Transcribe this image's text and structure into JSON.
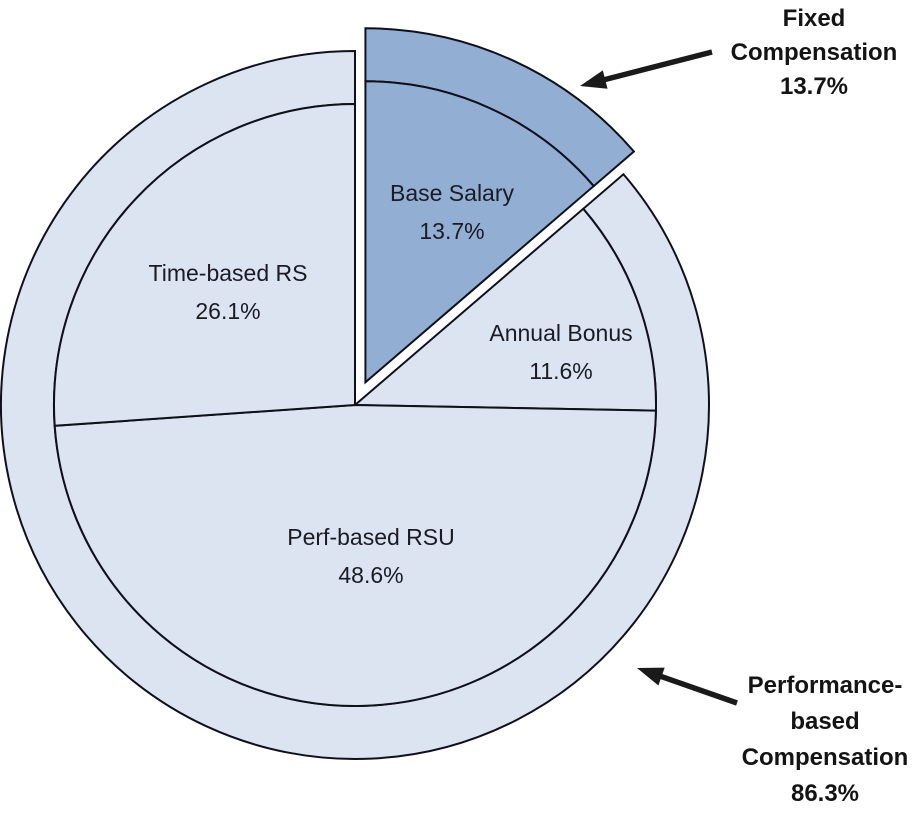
{
  "chart_data": {
    "type": "pie",
    "title": "",
    "legend_position": "none",
    "start_angle_deg": 0,
    "direction": "clockwise",
    "unit": "%",
    "slices": [
      {
        "label": "Base Salary",
        "value": 13.7,
        "value_text": "13.7%",
        "group": "fixed",
        "exploded": true
      },
      {
        "label": "Annual Bonus",
        "value": 11.6,
        "value_text": "11.6%",
        "group": "performance",
        "exploded": false
      },
      {
        "label": "Perf-based RSU",
        "value": 48.6,
        "value_text": "48.6%",
        "group": "performance",
        "exploded": false
      },
      {
        "label": "Time-based RS",
        "value": 26.1,
        "value_text": "26.1%",
        "group": "performance",
        "exploded": false
      }
    ],
    "groups": [
      {
        "name": "fixed",
        "label": "Fixed Compensation",
        "pct": 13.7,
        "color": "#92AFD3"
      },
      {
        "name": "performance",
        "label": "Performance-based Compensation",
        "pct": 86.3,
        "color": "#DCE4F1"
      }
    ],
    "annotations": [
      {
        "id": "fixed",
        "lines": [
          "Fixed",
          "Compensation",
          "13.7%"
        ]
      },
      {
        "id": "performance",
        "lines": [
          "Performance-",
          "based",
          "Compensation",
          "86.3%"
        ]
      }
    ],
    "colors": {
      "fixed": "#92AFD3",
      "performance": "#DCE4F1",
      "outline": "#10101c",
      "label_text": "#1b1b24",
      "annotation_text": "#141414",
      "arrow": "#1a1a1a",
      "background": "#FFFFFF"
    }
  }
}
